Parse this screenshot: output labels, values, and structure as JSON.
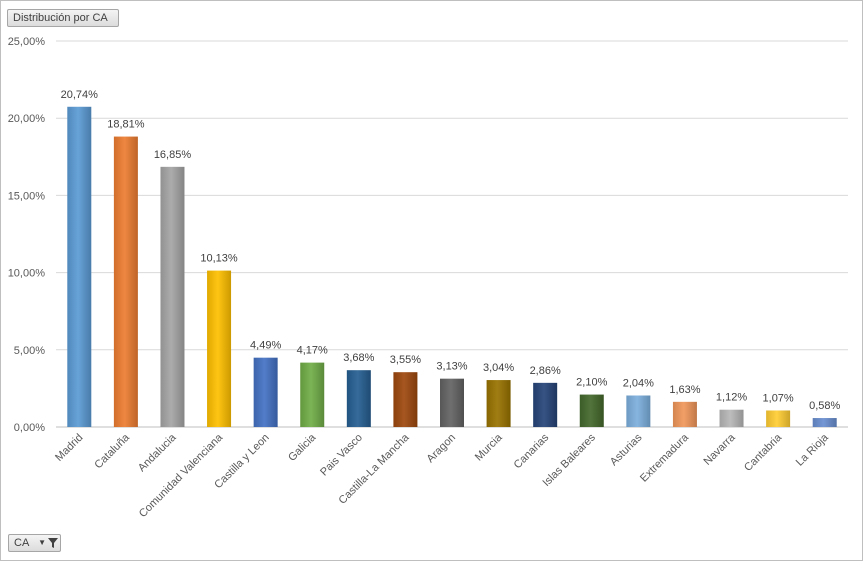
{
  "pivot": {
    "title_button": "Distribución por CA",
    "axis_field_button": "CA"
  },
  "chart_data": {
    "type": "bar",
    "title": "",
    "xlabel": "",
    "ylabel": "",
    "ylim": [
      0,
      25
    ],
    "y_ticks": [
      "0,00%",
      "5,00%",
      "10,00%",
      "15,00%",
      "20,00%",
      "25,00%"
    ],
    "grid": true,
    "legend": "none",
    "categories": [
      "Madrid",
      "Cataluña",
      "Andalucia",
      "Comunidad Valenciana",
      "Castilla y Leon",
      "Galicia",
      "Pais Vasco",
      "Castilla-La Mancha",
      "Aragon",
      "Murcia",
      "Canarias",
      "Islas Baleares",
      "Asturias",
      "Extremadura",
      "Navarra",
      "Cantabria",
      "La Rioja"
    ],
    "values": [
      20.74,
      18.81,
      16.85,
      10.13,
      4.49,
      4.17,
      3.68,
      3.55,
      3.13,
      3.04,
      2.86,
      2.1,
      2.04,
      1.63,
      1.12,
      1.07,
      0.58
    ],
    "data_labels": [
      "20,74%",
      "18,81%",
      "16,85%",
      "10,13%",
      "4,49%",
      "4,17%",
      "3,68%",
      "3,55%",
      "3,13%",
      "3,04%",
      "2,86%",
      "2,10%",
      "2,04%",
      "1,63%",
      "1,12%",
      "1,07%",
      "0,58%"
    ],
    "colors": [
      "#5b9bd5",
      "#ed7d31",
      "#a5a5a5",
      "#ffc000",
      "#4472c4",
      "#70ad47",
      "#255e91",
      "#9e480e",
      "#636363",
      "#997300",
      "#264478",
      "#43682b",
      "#7cafdd",
      "#f1975a",
      "#b7b7b7",
      "#ffcd33",
      "#698ed0"
    ]
  }
}
